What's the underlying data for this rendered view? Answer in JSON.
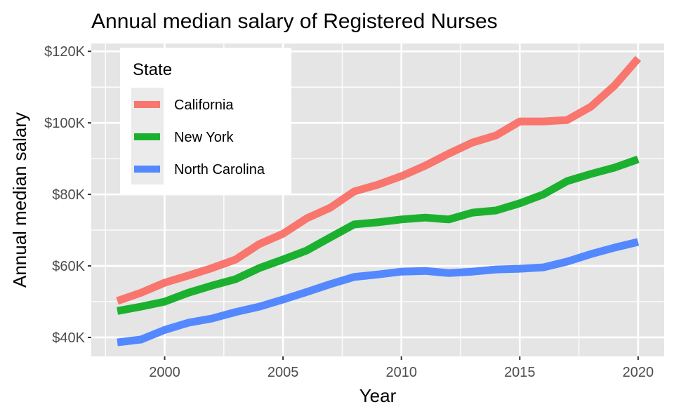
{
  "chart_data": {
    "type": "line",
    "title": "Annual median salary of Registered Nurses",
    "xlabel": "Year",
    "ylabel": "Annual median salary",
    "x": [
      1998,
      1999,
      2000,
      2001,
      2002,
      2003,
      2004,
      2005,
      2006,
      2007,
      2008,
      2009,
      2010,
      2011,
      2012,
      2013,
      2014,
      2015,
      2016,
      2017,
      2018,
      2019,
      2020
    ],
    "series": [
      {
        "name": "California",
        "color": "#F8766D",
        "values": [
          50.2,
          52.5,
          55.3,
          57.3,
          59.4,
          61.8,
          66.1,
          69.0,
          73.3,
          76.3,
          80.8,
          82.7,
          85.1,
          88.0,
          91.4,
          94.5,
          96.5,
          100.4,
          100.4,
          100.8,
          104.5,
          110.4,
          118.0
        ]
      },
      {
        "name": "New York",
        "color": "#1BB12E",
        "values": [
          47.4,
          48.6,
          50.0,
          52.5,
          54.5,
          56.3,
          59.4,
          61.8,
          64.3,
          68.0,
          71.6,
          72.2,
          73.0,
          73.5,
          73.0,
          74.9,
          75.5,
          77.5,
          80.0,
          83.7,
          85.7,
          87.5,
          89.8
        ]
      },
      {
        "name": "North Carolina",
        "color": "#5388FF",
        "values": [
          38.6,
          39.4,
          42.1,
          44.1,
          45.3,
          47.1,
          48.6,
          50.6,
          52.7,
          54.9,
          56.9,
          57.6,
          58.4,
          58.6,
          58.0,
          58.4,
          59.0,
          59.2,
          59.6,
          61.2,
          63.3,
          65.1,
          66.7
        ]
      }
    ],
    "value_units": "thousands of USD",
    "xlim": [
      1996.9,
      2021.1
    ],
    "ylim": [
      34.7,
      122.2
    ],
    "x_ticks": [
      2000,
      2005,
      2010,
      2015,
      2020
    ],
    "x_tick_labels": [
      "2000",
      "2005",
      "2010",
      "2015",
      "2020"
    ],
    "x_minor_ticks": [
      1997.5,
      2002.5,
      2007.5,
      2012.5,
      2017.5
    ],
    "y_ticks": [
      40,
      60,
      80,
      100,
      120
    ],
    "y_tick_labels": [
      "$40K",
      "$60K",
      "$80K",
      "$100K",
      "$120K"
    ],
    "y_minor_ticks": [
      50,
      70,
      90,
      110
    ],
    "grid": true,
    "legend": {
      "title": "State",
      "position": "top-left inside"
    },
    "colors": {
      "panel_background": "#E5E5E5",
      "grid": "#FFFFFF",
      "legend_key_background": "#EBEBEB"
    }
  }
}
